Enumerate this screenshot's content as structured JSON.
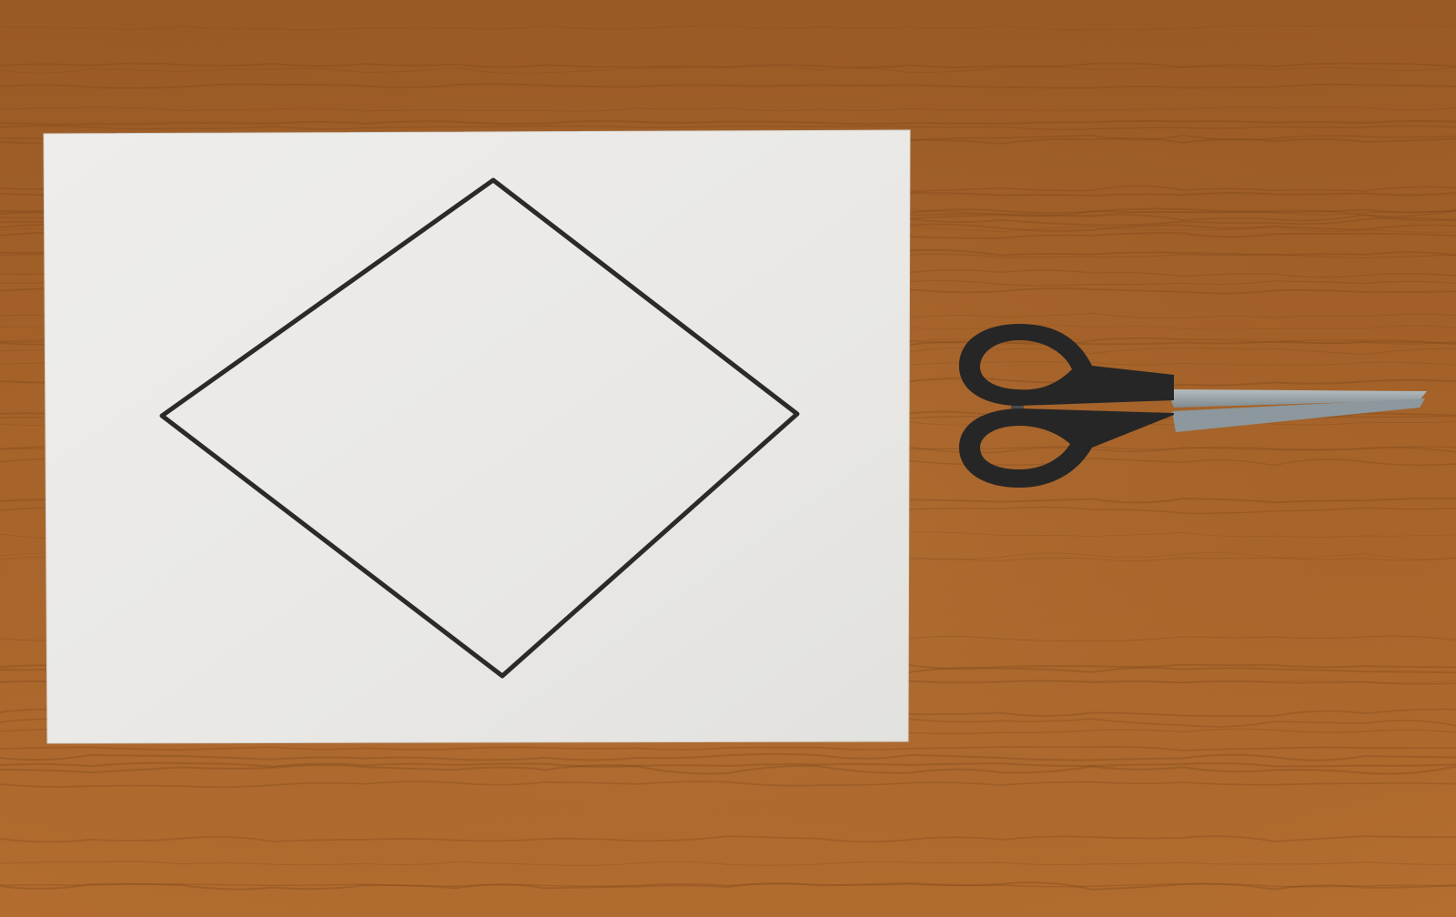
{
  "scene": {
    "description_visible_text": "",
    "colors": {
      "table_base": "#a8642a",
      "table_dark": "#8a4f1e",
      "table_light": "#bd7a3c",
      "paper": "#ecebe8",
      "paper_shadow": "#d9d8d4",
      "rhombus_line": "#2b2a28",
      "scissor_handle": "#262626",
      "scissor_blade": "#8e9a9f",
      "scissor_blade_light": "#b4bcbf"
    },
    "objects": {
      "paper": {
        "label": "paper-sheet"
      },
      "rhombus": {
        "label": "rhombus-drawing"
      },
      "scissors": {
        "label": "scissors"
      }
    }
  }
}
